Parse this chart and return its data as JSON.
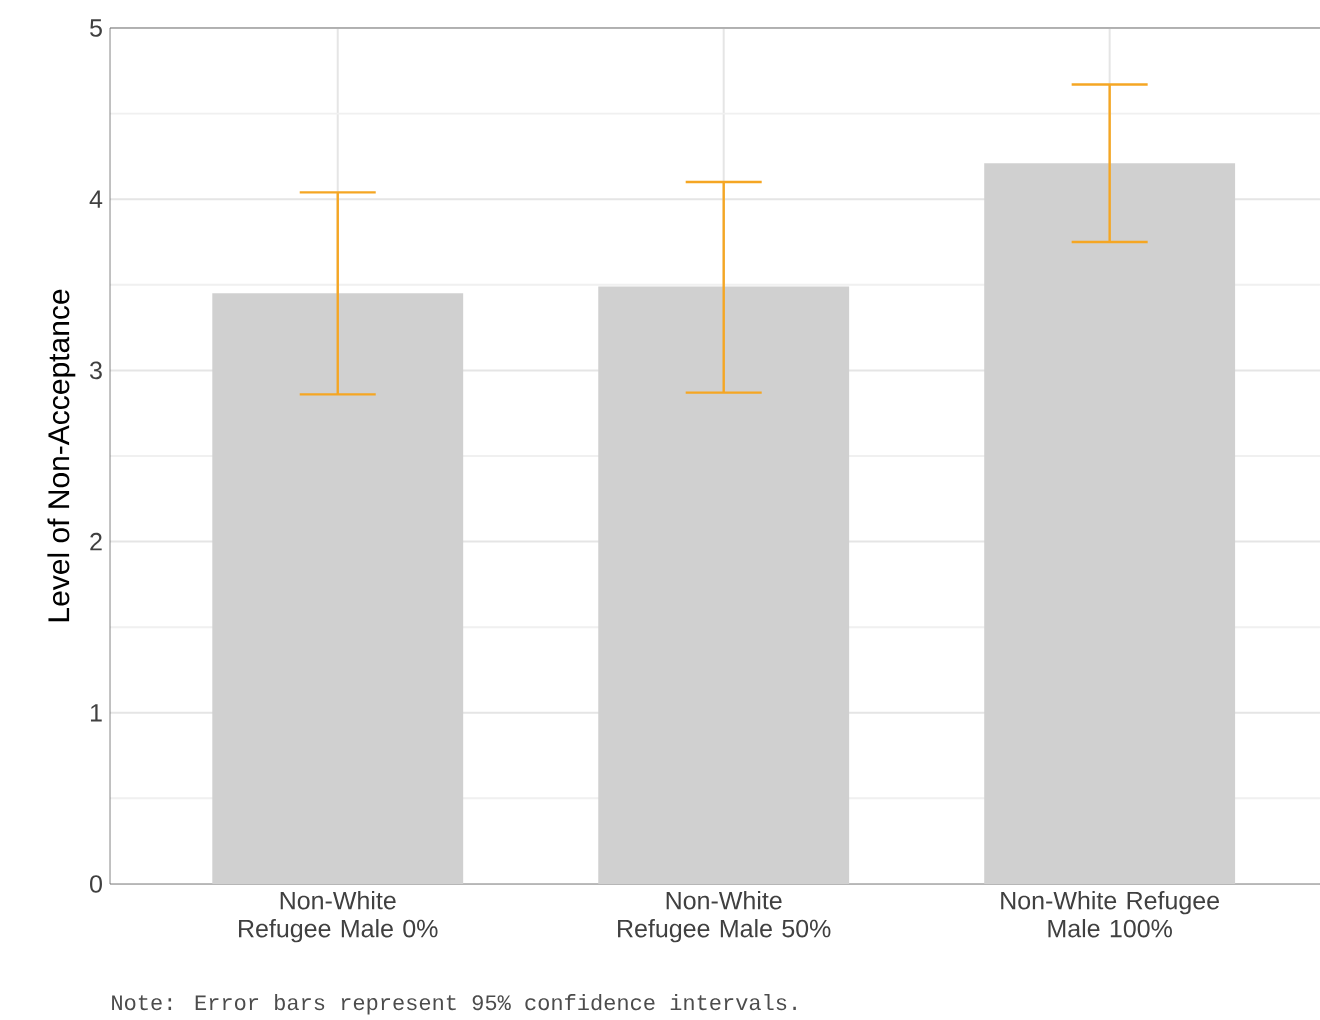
{
  "chart_data": {
    "type": "bar",
    "ylabel": "Level of Non-Acceptance",
    "categories": [
      "Non-White Refugee Male 0%",
      "Non-White Refugee Male 50%",
      "Non-White Refugee Male 100%"
    ],
    "values": [
      3.45,
      3.49,
      4.21
    ],
    "errors": [
      [
        2.86,
        4.04
      ],
      [
        2.87,
        4.1
      ],
      [
        3.75,
        4.67
      ]
    ],
    "color": "#d0d0d0",
    "ylim": [
      0,
      5
    ],
    "yticks": [
      0,
      1,
      2,
      3,
      4,
      5
    ],
    "grid": true,
    "annotations": [
      "Note: Error bars represent 95% confidence intervals."
    ]
  }
}
